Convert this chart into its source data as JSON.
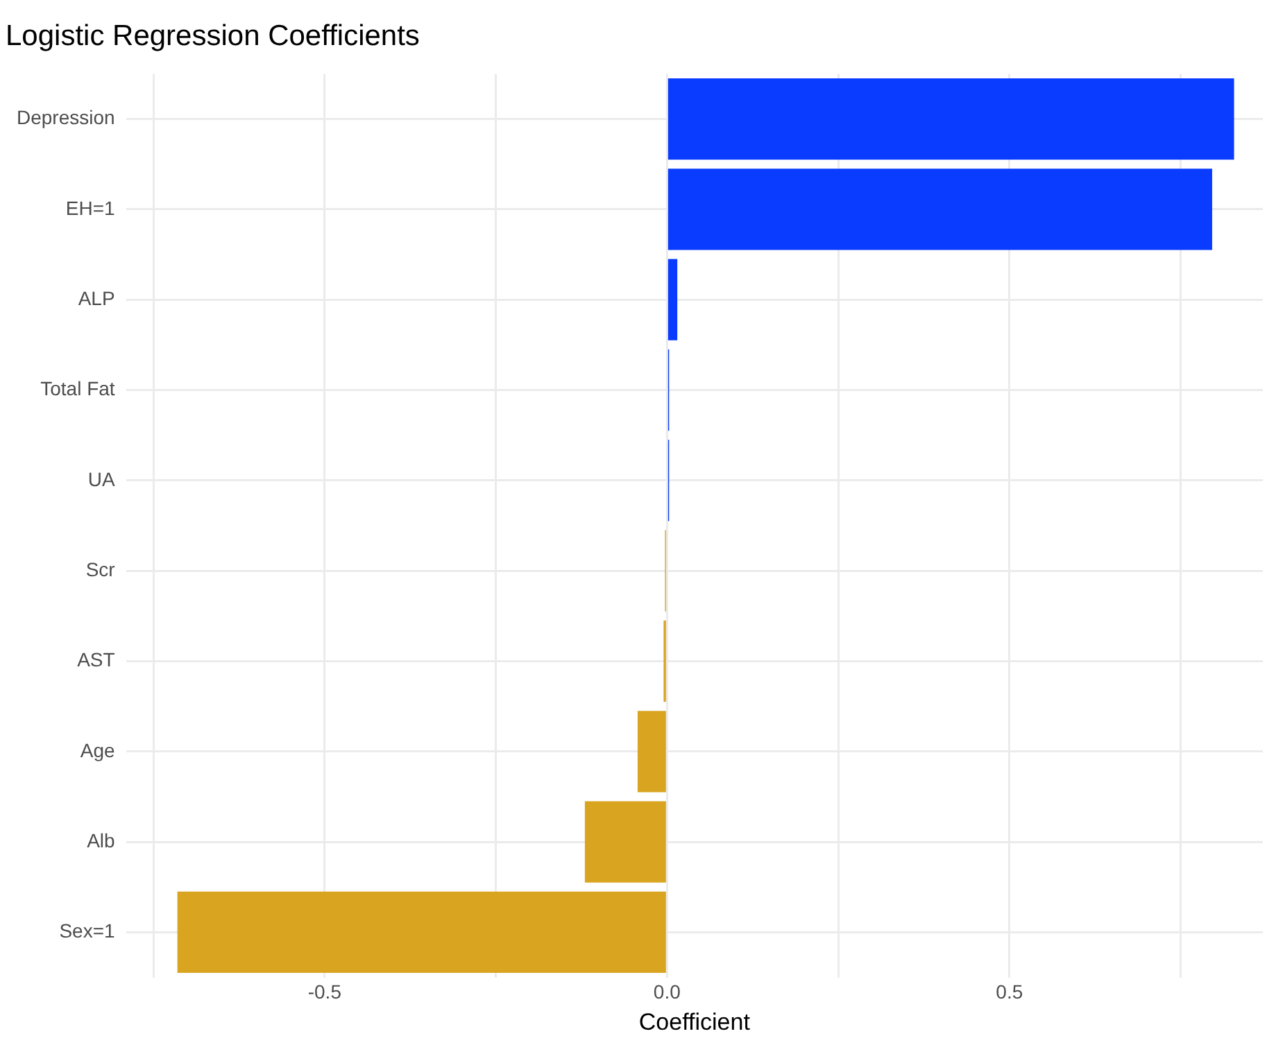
{
  "chart_data": {
    "type": "bar",
    "orientation": "horizontal",
    "title": "Logistic Regression Coefficients",
    "xlabel": "Coefficient",
    "categories": [
      "Depression",
      "EH=1",
      "ALP",
      "Total Fat",
      "UA",
      "Scr",
      "AST",
      "Age",
      "Alb",
      "Sex=1"
    ],
    "values": [
      0.828,
      0.796,
      0.015,
      0.003,
      0.003,
      -0.003,
      -0.005,
      -0.043,
      -0.12,
      -0.715
    ],
    "colors": [
      "#0a3cff",
      "#0a3cff",
      "#0a3cff",
      "#0a3cff",
      "#0a3cff",
      "#d9a521",
      "#d9a521",
      "#d9a521",
      "#d9a521",
      "#d9a521"
    ],
    "xlim": [
      -0.79,
      0.87
    ],
    "xticks": [
      {
        "value": -0.75,
        "label": null
      },
      -0.5,
      {
        "value": -0.25,
        "label": null
      },
      {
        "value": 0,
        "label": "0.0"
      },
      {
        "value": 0.25,
        "label": null
      },
      0.5,
      {
        "value": 0.75,
        "label": null
      }
    ],
    "grid": true
  }
}
